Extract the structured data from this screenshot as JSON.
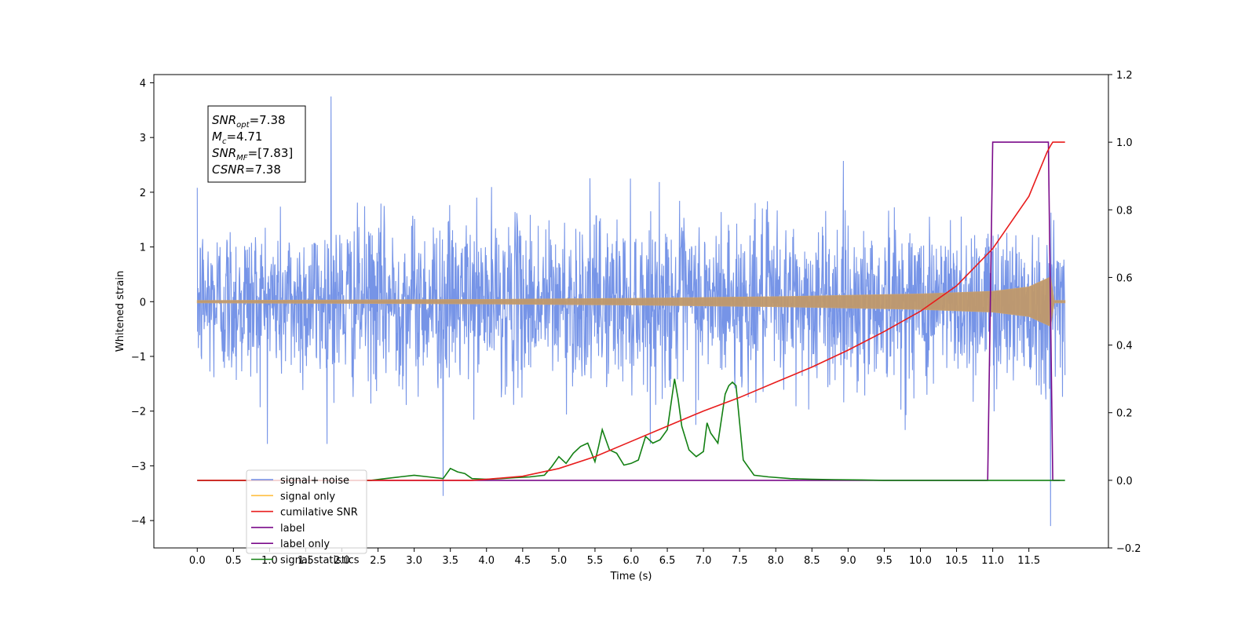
{
  "chart_data": {
    "type": "line",
    "title": "",
    "xlabel": "Time (s)",
    "ylabel": "Whitened strain",
    "xlim": [
      -0.6,
      12.6
    ],
    "ylim": [
      -4.5,
      4.15
    ],
    "y2lim": [
      -0.2,
      1.2
    ],
    "grid": false,
    "legend_position": "lower-left",
    "x_ticks": [
      "0.0",
      "0.5",
      "1.0",
      "1.5",
      "2.0",
      "2.5",
      "3.0",
      "3.5",
      "4.0",
      "4.5",
      "5.0",
      "5.5",
      "6.0",
      "6.5",
      "7.0",
      "7.5",
      "8.0",
      "8.5",
      "9.0",
      "9.5",
      "10.0",
      "10.5",
      "11.0",
      "11.5"
    ],
    "y_ticks": [
      "4",
      "3",
      "2",
      "1",
      "0",
      "−1",
      "−2",
      "−3",
      "−4"
    ],
    "y2_ticks": [
      "1.2",
      "1.0",
      "0.8",
      "0.6",
      "0.4",
      "0.2",
      "0.0",
      "−0.2"
    ],
    "annotation": [
      {
        "base": "SNR",
        "sub": "opt",
        "value": "=7.38"
      },
      {
        "base": "M",
        "sub": "c",
        "value": "=4.71"
      },
      {
        "base": "SNR",
        "sub": "MF",
        "value": "=[7.83]"
      },
      {
        "base": "CSNR",
        "sub": "",
        "value": "=7.38"
      }
    ],
    "series": [
      {
        "name": "signal+ noise",
        "color": "#6f8ee6",
        "axis": "left",
        "description_values": {
          "t_start": 0.0,
          "t_end": 12.0,
          "typical_range": [
            -2.0,
            2.4
          ],
          "extremes": [
            [
              1.85,
              3.75
            ],
            [
              3.4,
              -3.55
            ],
            [
              11.8,
              -4.1
            ]
          ]
        }
      },
      {
        "name": "signal only",
        "color": "#ffbf40",
        "axis": "left",
        "envelope": {
          "t": [
            0.0,
            2.0,
            4.0,
            6.0,
            8.0,
            10.0,
            11.0,
            11.5,
            11.8,
            11.85,
            12.0
          ],
          "amp": [
            0.02,
            0.03,
            0.04,
            0.06,
            0.09,
            0.14,
            0.19,
            0.27,
            0.45,
            0.02,
            0.02
          ]
        }
      },
      {
        "name": "cumilative SNR",
        "color": "#e81c1c",
        "axis": "right",
        "x": [
          0.0,
          3.8,
          4.0,
          4.5,
          5.0,
          5.5,
          6.0,
          6.5,
          7.0,
          7.5,
          8.0,
          8.5,
          9.0,
          9.5,
          10.0,
          10.5,
          11.0,
          11.5,
          11.75,
          11.8,
          11.83,
          12.0
        ],
        "values": [
          0.0,
          0.0,
          0.003,
          0.012,
          0.035,
          0.07,
          0.115,
          0.16,
          0.205,
          0.245,
          0.29,
          0.335,
          0.385,
          0.44,
          0.5,
          0.575,
          0.685,
          0.84,
          0.97,
          0.99,
          1.0,
          1.0
        ]
      },
      {
        "name": "label",
        "color": "#7a0a8a",
        "axis": "right",
        "x": [
          0.0,
          10.93,
          11.0,
          11.77,
          11.83,
          11.93
        ],
        "values": [
          0.0,
          0.0,
          1.0,
          1.0,
          0.0,
          0.0
        ]
      },
      {
        "name": "label only",
        "color": "#7a0a8a",
        "axis": "right",
        "hidden_in_plot": true
      },
      {
        "name": "signal statistics",
        "color": "#138013",
        "axis": "right",
        "x": [
          0.0,
          2.4,
          2.6,
          2.8,
          3.0,
          3.2,
          3.4,
          3.5,
          3.6,
          3.7,
          3.8,
          4.0,
          4.2,
          4.4,
          4.6,
          4.8,
          4.9,
          5.0,
          5.1,
          5.2,
          5.3,
          5.4,
          5.5,
          5.55,
          5.6,
          5.7,
          5.8,
          5.9,
          6.0,
          6.1,
          6.2,
          6.3,
          6.4,
          6.5,
          6.6,
          6.65,
          6.7,
          6.8,
          6.9,
          7.0,
          7.05,
          7.1,
          7.2,
          7.3,
          7.35,
          7.4,
          7.45,
          7.55,
          7.7,
          7.9,
          8.2,
          8.5,
          8.8,
          9.2,
          9.5,
          12.0
        ],
        "values": [
          0.0,
          0.0,
          0.005,
          0.01,
          0.015,
          0.01,
          0.005,
          0.035,
          0.025,
          0.02,
          0.005,
          0.003,
          0.005,
          0.008,
          0.01,
          0.015,
          0.04,
          0.07,
          0.05,
          0.08,
          0.1,
          0.11,
          0.055,
          0.1,
          0.15,
          0.09,
          0.08,
          0.045,
          0.05,
          0.06,
          0.13,
          0.11,
          0.12,
          0.15,
          0.3,
          0.24,
          0.16,
          0.09,
          0.07,
          0.085,
          0.17,
          0.14,
          0.11,
          0.255,
          0.28,
          0.29,
          0.28,
          0.06,
          0.015,
          0.01,
          0.005,
          0.003,
          0.002,
          0.001,
          0.0,
          0.0
        ]
      }
    ]
  }
}
